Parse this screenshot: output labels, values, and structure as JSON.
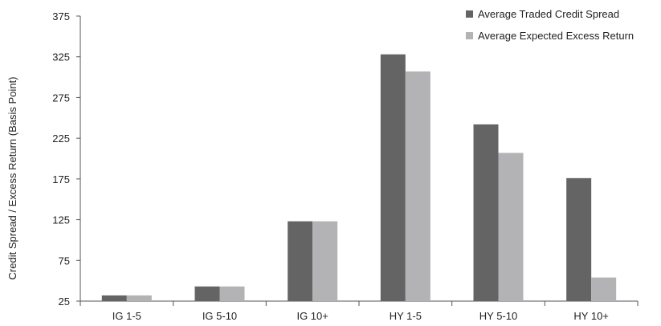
{
  "chart_data": {
    "type": "bar",
    "title": "",
    "xlabel": "",
    "ylabel": "Credit Spread / Excess Return (Basis Point)",
    "categories": [
      "IG 1-5",
      "IG 5-10",
      "IG 10+",
      "HY 1-5",
      "HY 5-10",
      "HY 10+"
    ],
    "series": [
      {
        "name": "Average Traded Credit Spread",
        "values": [
          32,
          43,
          123,
          328,
          242,
          176
        ],
        "color": "#646464"
      },
      {
        "name": "Average Expected Excess Return",
        "values": [
          32,
          43,
          123,
          307,
          207,
          54
        ],
        "color": "#b3b3b5"
      }
    ],
    "ylim": [
      25,
      375
    ],
    "yticks": [
      25,
      75,
      125,
      175,
      225,
      275,
      325,
      375
    ],
    "grid": false,
    "legend_position": "top-right"
  }
}
